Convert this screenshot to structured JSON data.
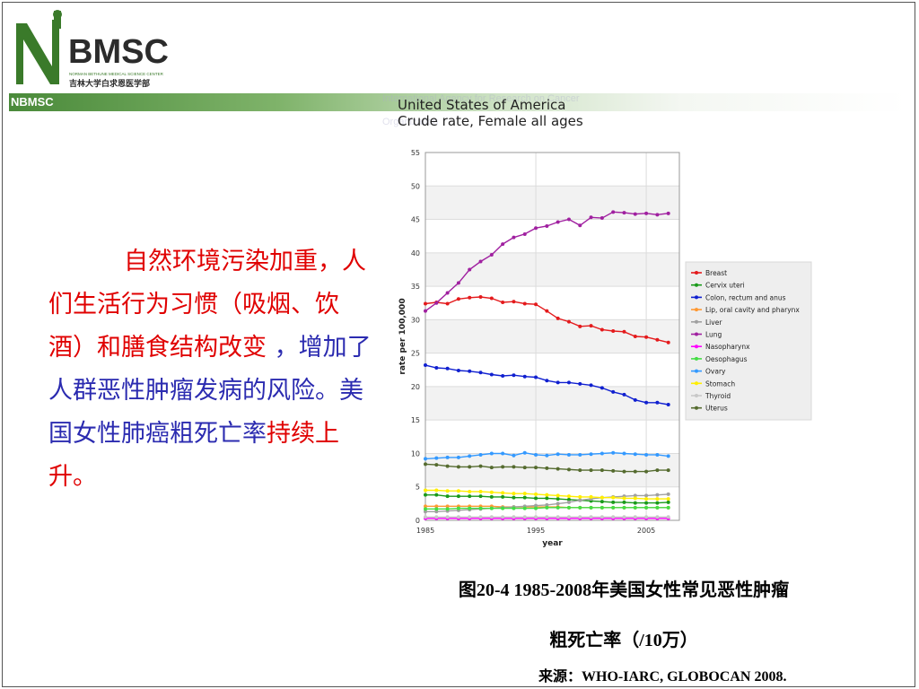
{
  "logo": {
    "mark": "BMSC",
    "subtitle_line1": "NORMAN BETHUNE MEDICAL SCIENCE CENTER",
    "subtitle_line2": "吉林大学白求恩医学部",
    "band_text": "NBMSC"
  },
  "watermark": {
    "line1": "International Agency for Research on Cancer",
    "line2": "Organization"
  },
  "body_text": {
    "part1": "自然环境污染加重，人们生活行为习惯（吸烟、饮酒）和膳食结构改变",
    "part2": " ，增加了人群恶性肿瘤发病的风险。美国女性肺癌粗死亡率",
    "part3": "持续上升。"
  },
  "caption": {
    "line1": "图20-4  1985-2008年美国女性常见恶性肿瘤",
    "line2": "粗死亡率（/10万）"
  },
  "source": "来源：WHO-IARC, GLOBOCAN 2008.",
  "chart_data": {
    "type": "line",
    "title": "United States of America",
    "subtitle": "Crude rate, Female all ages",
    "xlabel": "year",
    "ylabel": "rate per 100,000",
    "xlim": [
      1985,
      2008
    ],
    "ylim": [
      0,
      55
    ],
    "xticks": [
      1985,
      1995,
      2005
    ],
    "yticks": [
      0,
      5,
      10,
      15,
      20,
      25,
      30,
      35,
      40,
      45,
      50,
      55
    ],
    "grid": true,
    "legend_position": "right",
    "x": [
      1985,
      1986,
      1987,
      1988,
      1989,
      1990,
      1991,
      1992,
      1993,
      1994,
      1995,
      1996,
      1997,
      1998,
      1999,
      2000,
      2001,
      2002,
      2003,
      2004,
      2005,
      2006,
      2007
    ],
    "series": [
      {
        "name": "Breast",
        "color": "#e41a1c",
        "values": [
          32.4,
          32.6,
          32.4,
          33.1,
          33.3,
          33.4,
          33.2,
          32.6,
          32.7,
          32.4,
          32.3,
          31.3,
          30.2,
          29.7,
          29.0,
          29.1,
          28.5,
          28.3,
          28.2,
          27.5,
          27.4,
          27.0,
          26.6
        ]
      },
      {
        "name": "Cervix uteri",
        "color": "#1a9a1a",
        "values": [
          3.8,
          3.8,
          3.6,
          3.6,
          3.6,
          3.6,
          3.5,
          3.5,
          3.4,
          3.4,
          3.3,
          3.3,
          3.2,
          3.1,
          3.0,
          2.9,
          2.8,
          2.7,
          2.7,
          2.6,
          2.6,
          2.6,
          2.7
        ]
      },
      {
        "name": "Colon, rectum and anus",
        "color": "#1020d0",
        "values": [
          23.2,
          22.8,
          22.7,
          22.4,
          22.3,
          22.1,
          21.8,
          21.6,
          21.7,
          21.5,
          21.4,
          20.9,
          20.6,
          20.6,
          20.4,
          20.2,
          19.8,
          19.2,
          18.8,
          18.0,
          17.6,
          17.6,
          17.3
        ]
      },
      {
        "name": "Lip, oral cavity and pharynx",
        "color": "#ff9933",
        "values": [
          2.1,
          2.1,
          2.1,
          2.1,
          2.1,
          2.1,
          2.1,
          2.0,
          2.0,
          2.0,
          2.0,
          2.0,
          2.0,
          1.9,
          1.9,
          1.9,
          1.9,
          1.9,
          1.9,
          1.9,
          1.9,
          1.9,
          1.9
        ]
      },
      {
        "name": "Liver",
        "color": "#a0a0a0",
        "values": [
          1.3,
          1.3,
          1.4,
          1.5,
          1.6,
          1.7,
          1.8,
          1.9,
          2.0,
          2.1,
          2.2,
          2.3,
          2.5,
          2.7,
          3.0,
          3.2,
          3.4,
          3.5,
          3.6,
          3.7,
          3.7,
          3.8,
          3.9
        ]
      },
      {
        "name": "Lung",
        "color": "#a020a0",
        "values": [
          31.3,
          32.5,
          34.0,
          35.5,
          37.5,
          38.7,
          39.7,
          41.3,
          42.3,
          42.8,
          43.7,
          44.0,
          44.6,
          45.0,
          44.1,
          45.3,
          45.2,
          46.1,
          46.0,
          45.8,
          45.9,
          45.7,
          45.9
        ]
      },
      {
        "name": "Nasopharynx",
        "color": "#ff00ff",
        "values": [
          0.3,
          0.3,
          0.3,
          0.3,
          0.3,
          0.3,
          0.3,
          0.3,
          0.3,
          0.3,
          0.3,
          0.3,
          0.3,
          0.3,
          0.3,
          0.3,
          0.3,
          0.3,
          0.3,
          0.3,
          0.3,
          0.3,
          0.3
        ]
      },
      {
        "name": "Oesophagus",
        "color": "#44dd44",
        "values": [
          1.7,
          1.7,
          1.7,
          1.8,
          1.8,
          1.8,
          1.8,
          1.8,
          1.8,
          1.8,
          1.8,
          1.9,
          1.9,
          1.9,
          1.9,
          1.9,
          1.9,
          1.9,
          1.9,
          1.9,
          1.9,
          1.9,
          1.9
        ]
      },
      {
        "name": "Ovary",
        "color": "#3399ff",
        "values": [
          9.2,
          9.3,
          9.4,
          9.4,
          9.6,
          9.8,
          10.0,
          10.0,
          9.7,
          10.1,
          9.8,
          9.7,
          9.9,
          9.8,
          9.8,
          9.9,
          10.0,
          10.1,
          10.0,
          9.9,
          9.8,
          9.8,
          9.6
        ]
      },
      {
        "name": "Stomach",
        "color": "#ffee00",
        "values": [
          4.5,
          4.5,
          4.4,
          4.4,
          4.3,
          4.3,
          4.2,
          4.1,
          4.0,
          4.0,
          3.9,
          3.8,
          3.7,
          3.6,
          3.5,
          3.5,
          3.4,
          3.4,
          3.3,
          3.3,
          3.2,
          3.2,
          3.2
        ]
      },
      {
        "name": "Thyroid",
        "color": "#c8c8c8",
        "values": [
          0.5,
          0.5,
          0.5,
          0.5,
          0.5,
          0.5,
          0.5,
          0.5,
          0.5,
          0.5,
          0.5,
          0.5,
          0.5,
          0.5,
          0.5,
          0.5,
          0.5,
          0.5,
          0.5,
          0.5,
          0.5,
          0.5,
          0.5
        ]
      },
      {
        "name": "Uterus",
        "color": "#556b2f",
        "values": [
          8.4,
          8.3,
          8.1,
          8.0,
          8.0,
          8.1,
          7.9,
          8.0,
          8.0,
          7.9,
          7.9,
          7.8,
          7.7,
          7.6,
          7.5,
          7.5,
          7.5,
          7.4,
          7.3,
          7.3,
          7.3,
          7.5,
          7.5
        ]
      }
    ]
  }
}
